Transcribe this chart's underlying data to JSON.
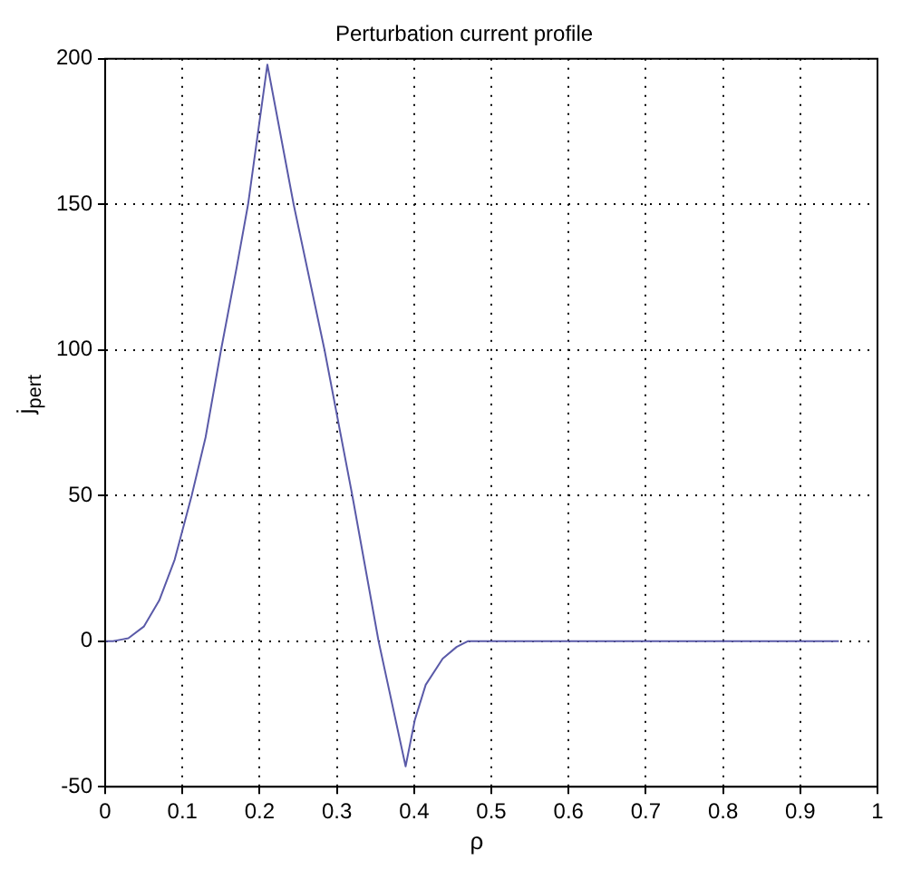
{
  "chart_data": {
    "type": "line",
    "title": "Perturbation current profile",
    "xlabel": "ρ",
    "ylabel": "j$_{pert}$",
    "x": [
      0,
      0.01,
      0.02,
      0.03,
      0.05,
      0.07,
      0.09,
      0.1,
      0.112,
      0.13,
      0.15,
      0.17,
      0.185,
      0.21,
      0.244,
      0.284,
      0.32,
      0.354,
      0.389,
      0.401,
      0.415,
      0.437,
      0.455,
      0.47,
      0.95
    ],
    "series": [
      {
        "color": "#5a5aa8",
        "values": [
          0,
          0,
          0.5,
          1,
          5,
          14,
          28,
          38,
          50,
          70,
          100,
          128,
          150,
          198,
          150,
          100,
          50,
          0,
          -43,
          -27,
          -15,
          -6,
          -2,
          0,
          0
        ]
      }
    ],
    "xlim": [
      0,
      1
    ],
    "xticks": [
      0,
      0.1,
      0.2,
      0.3,
      0.4,
      0.5,
      0.6,
      0.7,
      0.8,
      0.9,
      1
    ],
    "ylim": [
      -50,
      200
    ],
    "yticks": [
      -50,
      0,
      50,
      100,
      150,
      200
    ],
    "grid": true,
    "line_style": "solid",
    "marker": "none"
  }
}
